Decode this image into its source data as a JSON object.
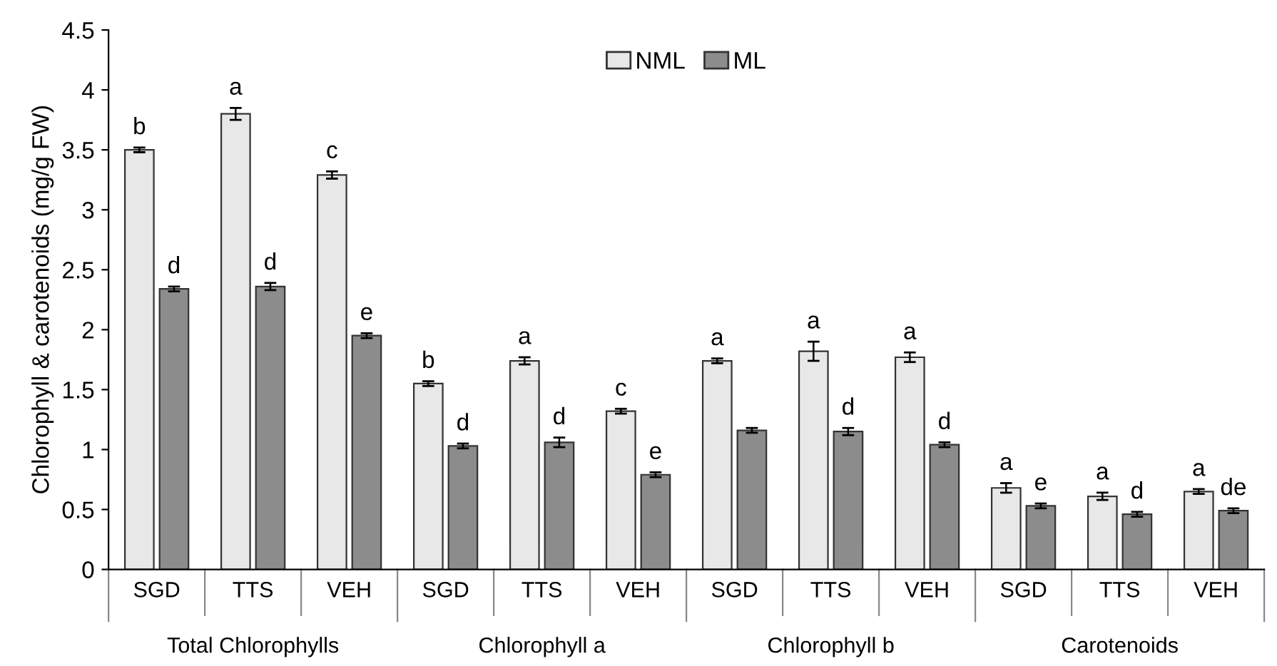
{
  "chart_data": {
    "type": "bar",
    "ylabel": "Chlorophyll & carotenoids (mg/g FW)",
    "categories": [
      "SGD",
      "TTS",
      "VEH",
      "SGD",
      "TTS",
      "VEH",
      "SGD",
      "TTS",
      "VEH",
      "SGD",
      "TTS",
      "VEH"
    ],
    "annotations": [
      "Total Chlorophylls",
      "Chlorophyll a",
      "Chlorophyll b",
      "Carotenoids"
    ],
    "series": [
      {
        "name": "NML",
        "color": "#e8e8e8",
        "values": [
          3.5,
          3.8,
          3.29,
          1.55,
          1.74,
          1.32,
          1.74,
          1.82,
          1.77,
          0.68,
          0.61,
          0.65
        ],
        "errors": [
          0.02,
          0.05,
          0.03,
          0.02,
          0.03,
          0.02,
          0.02,
          0.08,
          0.04,
          0.04,
          0.03,
          0.02
        ],
        "value_labels": [
          "b",
          "a",
          "c",
          "b",
          "a",
          "c",
          "a",
          "a",
          "a",
          "a",
          "a",
          "a"
        ]
      },
      {
        "name": "ML",
        "color": "#8c8c8c",
        "values": [
          2.34,
          2.36,
          1.95,
          1.03,
          1.06,
          0.79,
          1.16,
          1.15,
          1.04,
          0.53,
          0.46,
          0.49
        ],
        "errors": [
          0.02,
          0.03,
          0.02,
          0.02,
          0.04,
          0.02,
          0.02,
          0.03,
          0.02,
          0.02,
          0.02,
          0.02
        ],
        "value_labels": [
          "d",
          "d",
          "e",
          "d",
          "d",
          "e",
          null,
          "d",
          "d",
          "e",
          "d",
          "de"
        ]
      }
    ],
    "ylim": [
      0,
      4.5
    ],
    "yticks": [
      0,
      0.5,
      1,
      1.5,
      2,
      2.5,
      3,
      3.5,
      4,
      4.5
    ],
    "grid": false,
    "legend": "top"
  }
}
